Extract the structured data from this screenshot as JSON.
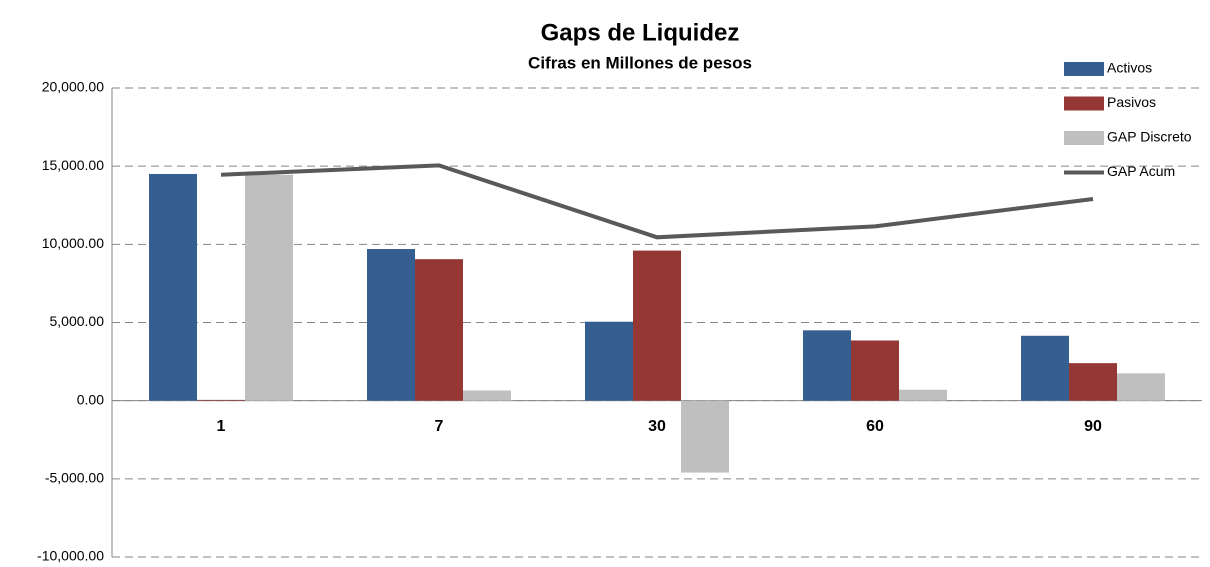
{
  "chart_data": {
    "type": "bar",
    "title": "Gaps de Liquidez",
    "subtitle": "Cifras en Millones de pesos",
    "categories": [
      "1",
      "7",
      "30",
      "60",
      "90"
    ],
    "series": [
      {
        "name": "Activos",
        "color": "#355f91",
        "type": "bar",
        "values": [
          14500,
          9700,
          5050,
          4500,
          4150
        ]
      },
      {
        "name": "Pasivos",
        "color": "#953735",
        "type": "bar",
        "values": [
          50,
          9050,
          9600,
          3850,
          2400
        ]
      },
      {
        "name": "GAP Discreto",
        "color": "#bfbfbf",
        "type": "bar",
        "values": [
          14450,
          650,
          -4600,
          700,
          1750
        ]
      },
      {
        "name": "GAP Acum",
        "color": "#595959",
        "type": "line",
        "values": [
          14450,
          15050,
          10450,
          11150,
          12900
        ]
      }
    ],
    "ylim": [
      -10000,
      20000
    ],
    "yticks": [
      {
        "value": -10000,
        "label": "-10,000.00"
      },
      {
        "value": -5000,
        "label": "-5,000.00"
      },
      {
        "value": 0,
        "label": "0.00"
      },
      {
        "value": 5000,
        "label": "5,000.00"
      },
      {
        "value": 10000,
        "label": "10,000.00"
      },
      {
        "value": 15000,
        "label": "15,000.00"
      },
      {
        "value": 20000,
        "label": "20,000.00"
      }
    ],
    "grid": true,
    "legend": "top-right"
  }
}
